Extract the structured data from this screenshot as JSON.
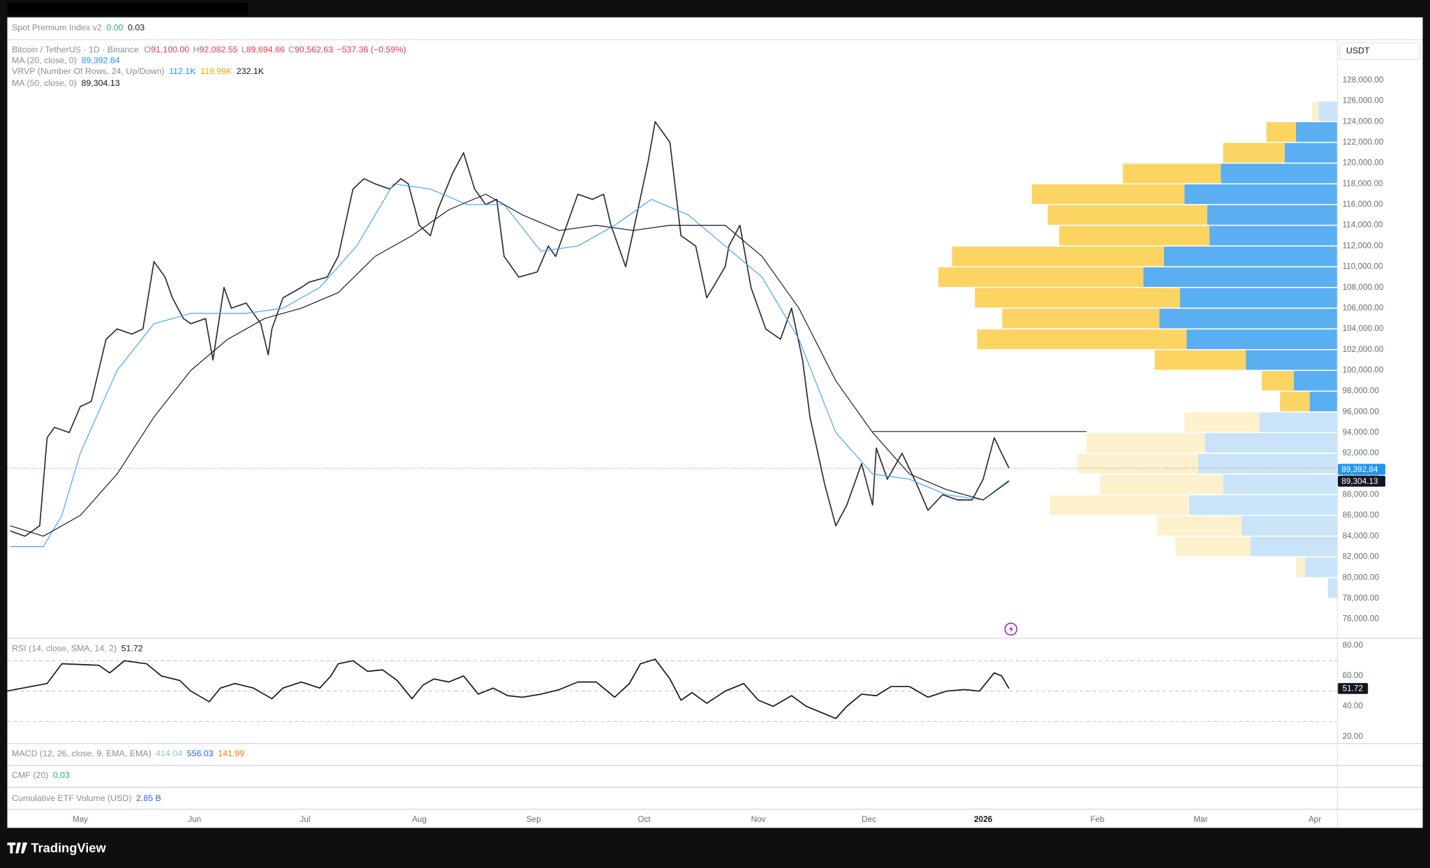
{
  "header": {
    "indicator": "Spot Premium Index v2",
    "values": [
      "0.00",
      "0.03"
    ]
  },
  "currency": "USDT",
  "chart_data": [
    {
      "type": "line",
      "ohlc": [
        {
          "label": "O",
          "value": "91,100.00"
        },
        {
          "label": "H",
          "value": "92,082.55"
        },
        {
          "label": "L",
          "value": "89,694.66"
        },
        {
          "label": "C",
          "value": "90,562.63"
        }
      ],
      "change": "−537.36 (−0.59%)",
      "series": [
        {
          "name": "Bitcoin / TetherUS · 1D · Binance",
          "color": "#2a2e39",
          "x": [
            -19,
            -15,
            -11,
            -9,
            -7,
            -3,
            0,
            3,
            7,
            10,
            14,
            17,
            20,
            23,
            25,
            28,
            30,
            34,
            36,
            39,
            41,
            45,
            49,
            51,
            52,
            55,
            60,
            62,
            67,
            70,
            74,
            77,
            80,
            84,
            87,
            89,
            92,
            95,
            97,
            101,
            104,
            107,
            110,
            113,
            115,
            119,
            124,
            127,
            129,
            132,
            135,
            139,
            142,
            144,
            148,
            151,
            154,
            156,
            160,
            163,
            167,
            170,
            175,
            176,
            179,
            182,
            186,
            190,
            193,
            196,
            198,
            202,
            205,
            208,
            212,
            215,
            216,
            219,
            223,
            227,
            230,
            234,
            238,
            242,
            245,
            248,
            250,
            252
          ],
          "values": [
            84500,
            84000,
            85000,
            93500,
            94500,
            94000,
            96500,
            97000,
            103000,
            104000,
            103500,
            104000,
            110500,
            109000,
            107000,
            105000,
            104500,
            105000,
            101000,
            108000,
            106000,
            106500,
            104500,
            101500,
            104000,
            107000,
            108000,
            108500,
            109000,
            111000,
            117500,
            118500,
            118000,
            117500,
            118500,
            118000,
            114000,
            113000,
            115500,
            119000,
            121000,
            117500,
            116000,
            116500,
            111000,
            109000,
            109500,
            112000,
            111000,
            114000,
            117000,
            116500,
            117000,
            114000,
            110000,
            115000,
            120000,
            124000,
            122000,
            113000,
            112000,
            107000,
            110000,
            112000,
            114000,
            108000,
            104000,
            103000,
            106000,
            101000,
            95500,
            89000,
            85000,
            87000,
            91000,
            87000,
            92500,
            89500,
            92000,
            89000,
            86500,
            88000,
            87500,
            87500,
            89500,
            93500,
            92000,
            90562.63
          ]
        },
        {
          "name": "MA (20, close, 0)",
          "color": "#42a5f5",
          "last_label": "89,392.84",
          "x": [
            -19,
            -10,
            -5,
            0,
            10,
            20,
            30,
            45,
            55,
            65,
            75,
            85,
            95,
            105,
            115,
            125,
            135,
            145,
            155,
            165,
            175,
            185,
            195,
            205,
            215,
            225,
            235,
            245,
            252
          ],
          "values": [
            83000,
            83000,
            86000,
            92000,
            100000,
            104500,
            105500,
            105500,
            106000,
            108000,
            112000,
            118000,
            117500,
            116000,
            116000,
            111500,
            112000,
            114000,
            116500,
            115000,
            112000,
            109000,
            103000,
            94000,
            90000,
            89500,
            88000,
            87500,
            89392.84
          ]
        },
        {
          "name": "MA (50, close, 0)",
          "color": "#131722",
          "last_label": "89,304.13",
          "x": [
            -19,
            -10,
            0,
            10,
            20,
            30,
            40,
            50,
            60,
            70,
            80,
            90,
            100,
            110,
            120,
            130,
            140,
            150,
            160,
            175,
            185,
            195,
            205,
            215,
            225,
            235,
            245,
            252
          ],
          "values": [
            85000,
            84000,
            86000,
            90000,
            95500,
            100000,
            103000,
            105000,
            106000,
            107500,
            111000,
            113000,
            115500,
            117000,
            115000,
            113500,
            114000,
            113500,
            114000,
            114000,
            111000,
            106000,
            99000,
            94000,
            90000,
            88500,
            87500,
            89304.13
          ]
        }
      ],
      "profile": {
        "name": "VRVP (Number Of Rows, 24, Up/Down)",
        "value_labels": [
          "112.1K",
          "119.99K",
          "232.1K"
        ],
        "bins": [
          78000,
          80000,
          82000,
          84000,
          86000,
          88000,
          90000,
          92000,
          94000,
          96000,
          98000,
          100000,
          102000,
          104000,
          106000,
          108000,
          110000,
          112000,
          114000,
          116000,
          118000,
          120000,
          122000,
          124000,
          126000
        ],
        "up": [
          0.4,
          1.4,
          3.8,
          4.2,
          6.5,
          5.0,
          6.1,
          5.8,
          3.4,
          1.2,
          1.9,
          4.0,
          6.6,
          7.8,
          6.9,
          8.5,
          7.6,
          5.6,
          5.7,
          6.7,
          5.1,
          2.3,
          1.8,
          0.8
        ],
        "down": [
          0,
          0.4,
          3.3,
          3.7,
          6.1,
          5.4,
          5.3,
          5.2,
          3.3,
          1.3,
          1.4,
          4.0,
          9.2,
          6.9,
          9.0,
          9.0,
          9.3,
          6.6,
          7.0,
          6.7,
          4.3,
          2.7,
          1.3,
          0.3
        ],
        "faded": [
          true,
          true,
          true,
          true,
          true,
          true,
          true,
          true,
          true,
          false,
          false,
          false,
          false,
          false,
          false,
          false,
          false,
          false,
          false,
          false,
          false,
          false,
          false,
          true
        ],
        "up_color": "#5aaef2",
        "down_color": "#fcd462",
        "faded_up_color": "#c9e4f9",
        "faded_down_color": "#fdf1cd"
      },
      "hline": {
        "value": 94100,
        "x": [
          215,
          273
        ]
      },
      "last_price_line": true,
      "xlim": [
        -19.8,
        341
      ],
      "xticks": [
        {
          "value": 0,
          "label": "May"
        },
        {
          "value": 31,
          "label": "Jun"
        },
        {
          "value": 61,
          "label": "Jul"
        },
        {
          "value": 92,
          "label": "Aug"
        },
        {
          "value": 123,
          "label": "Sep"
        },
        {
          "value": 153,
          "label": "Oct"
        },
        {
          "value": 184,
          "label": "Nov"
        },
        {
          "value": 214,
          "label": "Dec"
        },
        {
          "value": 245,
          "label": "2026"
        },
        {
          "value": 276,
          "label": "Feb"
        },
        {
          "value": 304,
          "label": "Mar"
        },
        {
          "value": 335,
          "label": "Apr"
        }
      ],
      "ylim": [
        74150,
        131870
      ],
      "yticks": [
        {
          "value": 76000,
          "label": "76,000.00"
        },
        {
          "value": 78000,
          "label": "78,000.00"
        },
        {
          "value": 80000,
          "label": "80,000.00"
        },
        {
          "value": 82000,
          "label": "82,000.00"
        },
        {
          "value": 84000,
          "label": "84,000.00"
        },
        {
          "value": 86000,
          "label": "86,000.00"
        },
        {
          "value": 88000,
          "label": "88,000.00"
        },
        {
          "value": 90000,
          "label": "90,000.00"
        },
        {
          "value": 92000,
          "label": "92,000.00"
        },
        {
          "value": 94000,
          "label": "94,000.00"
        },
        {
          "value": 96000,
          "label": "96,000.00"
        },
        {
          "value": 98000,
          "label": "98,000.00"
        },
        {
          "value": 100000,
          "label": "100,000.00"
        },
        {
          "value": 102000,
          "label": "102,000.00"
        },
        {
          "value": 104000,
          "label": "104,000.00"
        },
        {
          "value": 106000,
          "label": "106,000.00"
        },
        {
          "value": 108000,
          "label": "108,000.00"
        },
        {
          "value": 110000,
          "label": "110,000.00"
        },
        {
          "value": 112000,
          "label": "112,000.00"
        },
        {
          "value": 114000,
          "label": "114,000.00"
        },
        {
          "value": 116000,
          "label": "116,000.00"
        },
        {
          "value": 118000,
          "label": "118,000.00"
        },
        {
          "value": 120000,
          "label": "120,000.00"
        },
        {
          "value": 122000,
          "label": "122,000.00"
        },
        {
          "value": 124000,
          "label": "124,000.00"
        },
        {
          "value": 126000,
          "label": "126,000.00"
        },
        {
          "value": 128000,
          "label": "128,000.00"
        }
      ],
      "grid": false
    },
    {
      "type": "line",
      "series": [
        {
          "name": "RSI (14, close, SMA, 14, 2)",
          "color": "#131722",
          "last_label": "51.72",
          "x": [
            -20,
            -9,
            -5,
            5,
            8,
            12,
            18,
            22,
            27,
            30,
            35,
            38,
            42,
            47,
            52,
            55,
            60,
            65,
            68,
            70,
            74,
            78,
            82,
            86,
            90,
            93,
            96,
            100,
            104,
            108,
            112,
            116,
            120,
            125,
            130,
            135,
            140,
            145,
            149,
            152,
            156,
            160,
            163,
            166,
            170,
            175,
            180,
            184,
            188,
            193,
            197,
            202,
            205,
            208,
            212,
            216,
            220,
            225,
            230,
            235,
            240,
            244,
            248,
            250,
            252
          ],
          "values": [
            50,
            55,
            68,
            67,
            62,
            70,
            68,
            60,
            57,
            50,
            43,
            52,
            55,
            52,
            45,
            52,
            56,
            52,
            60,
            68,
            70,
            63,
            64,
            57,
            45,
            54,
            58,
            56,
            60,
            48,
            52,
            47,
            46,
            48,
            51,
            56,
            56,
            46,
            55,
            68,
            71,
            58,
            44,
            49,
            42,
            50,
            55,
            44,
            40,
            47,
            40,
            35,
            32,
            40,
            48,
            47,
            53,
            53,
            46,
            50,
            51,
            50,
            62,
            60,
            51.72
          ]
        }
      ],
      "levels": [
        70,
        50,
        30
      ],
      "ylim": [
        15.8,
        84.8
      ],
      "yticks": [
        {
          "value": 80,
          "label": "80.00"
        },
        {
          "value": 60,
          "label": "60.00"
        },
        {
          "value": 40,
          "label": "40.00"
        },
        {
          "value": 20,
          "label": "20.00"
        }
      ],
      "grid": false
    }
  ],
  "panes": [
    {
      "name": "MACD (12, 26, close, 9, EMA, EMA)",
      "values": [
        "414.04",
        "556.03",
        "141.99"
      ]
    },
    {
      "name": "CMF (20)",
      "values": [
        "0.03"
      ]
    },
    {
      "name": "Cumulative ETF Volume (USD)",
      "values": [
        "2.85 B"
      ]
    }
  ],
  "brand": "TradingView"
}
